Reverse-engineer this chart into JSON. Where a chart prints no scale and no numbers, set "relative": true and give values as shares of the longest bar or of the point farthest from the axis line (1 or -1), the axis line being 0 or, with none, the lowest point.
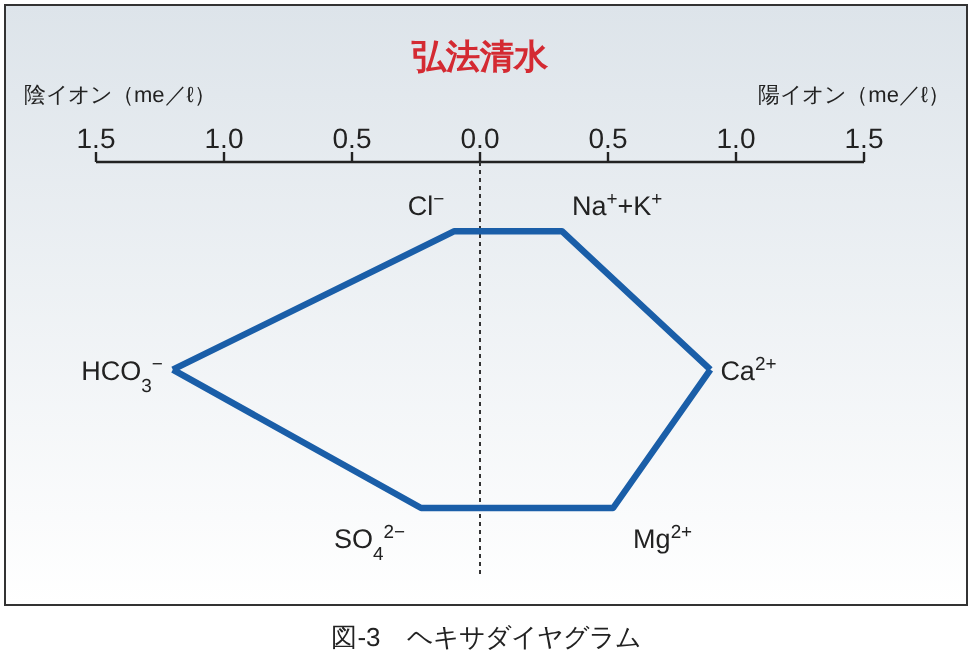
{
  "chart_data": {
    "type": "line",
    "title": "弘法清水",
    "xlabel": "陰イオン（me／ℓ）",
    "relative": true,
    "xlim": [
      -1.5,
      1.5
    ],
    "xticks": [
      {
        "value": -1.5,
        "label": "1.5"
      },
      {
        "value": -1.0,
        "label": "1.0"
      },
      {
        "value": -0.5,
        "label": "0.5"
      },
      {
        "value": 0,
        "label": "0.0"
      },
      {
        "value": 0.5,
        "label": "0.5"
      },
      {
        "value": 1.0,
        "label": "1.0"
      },
      {
        "value": 1.5,
        "label": "1.5"
      }
    ],
    "series": [
      {
        "color": "#1a5ea8",
        "x": [
          -1.2,
          -0.1,
          0.32,
          0.9
        ],
        "values": [
          -0.6,
          -0.2,
          -0.2,
          -0.6
        ]
      },
      {
        "color": "#1a5ea8",
        "x": [
          -1.2,
          -0.23,
          0.52,
          0.9
        ],
        "values": [
          -0.6,
          -1,
          -1,
          -0.6
        ]
      }
    ],
    "marker": "none",
    "line_style": "solid",
    "tick_labels": "x",
    "ref_lines": [
      {
        "axis": "x",
        "value": 0,
        "line_style": "dotted",
        "color": "#333333"
      }
    ],
    "annotations": [
      "陽イオン（me／ℓ）",
      "図-3　ヘキサダイヤグラム",
      {
        "text": "Cl$^{−}$",
        "x": -0.1,
        "y": -0.2
      },
      {
        "text": "Na$^{+}$+K$^{+}$",
        "x": 0.32,
        "y": -0.2
      },
      {
        "text": "Ca$^{2+}$",
        "x": 0.9,
        "y": -0.6
      },
      {
        "text": "Mg$^{2+}$",
        "x": 0.52,
        "y": -1
      },
      {
        "text": "SO$_{4}$$^{2−}$",
        "x": -0.23,
        "y": -1
      },
      {
        "text": "HCO$_{3}$$^{−}$",
        "x": -1.2,
        "y": -0.6
      }
    ]
  }
}
